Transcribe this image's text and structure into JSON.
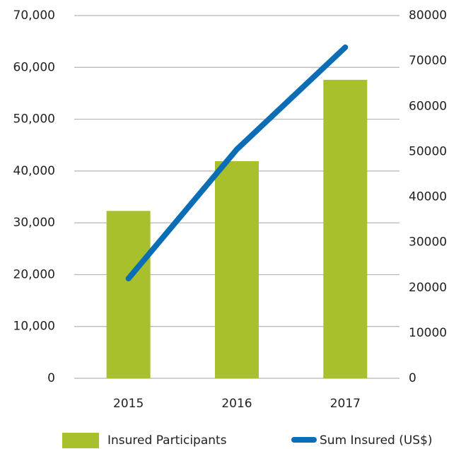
{
  "chart_data": {
    "type": "bar-line",
    "categories": [
      "2015",
      "2016",
      "2017"
    ],
    "series": [
      {
        "name": "Insured Participants",
        "color": "#a8c02b",
        "type": "bar",
        "axis": "y",
        "values": [
          32300,
          41900,
          57600
        ]
      },
      {
        "name": "Sum Insured (US$)",
        "color": "#0a6db5",
        "type": "line",
        "axis": "y2",
        "values": [
          22000,
          50500,
          73000
        ]
      }
    ],
    "ylim": [
      0,
      70000
    ],
    "yticks": [
      0,
      {
        "value": 10000,
        "label": "10,000"
      },
      {
        "value": 20000,
        "label": "20,000"
      },
      {
        "value": 30000,
        "label": "30,000"
      },
      {
        "value": 40000,
        "label": "40,000"
      },
      {
        "value": 50000,
        "label": "50,000"
      },
      {
        "value": 60000,
        "label": "60,000"
      },
      {
        "value": 70000,
        "label": "70,000"
      }
    ],
    "y2lim": [
      0,
      80000
    ],
    "y2ticks": [
      0,
      10000,
      20000,
      30000,
      40000,
      50000,
      60000,
      70000,
      80000
    ],
    "grid": true,
    "legend": "bottom"
  }
}
